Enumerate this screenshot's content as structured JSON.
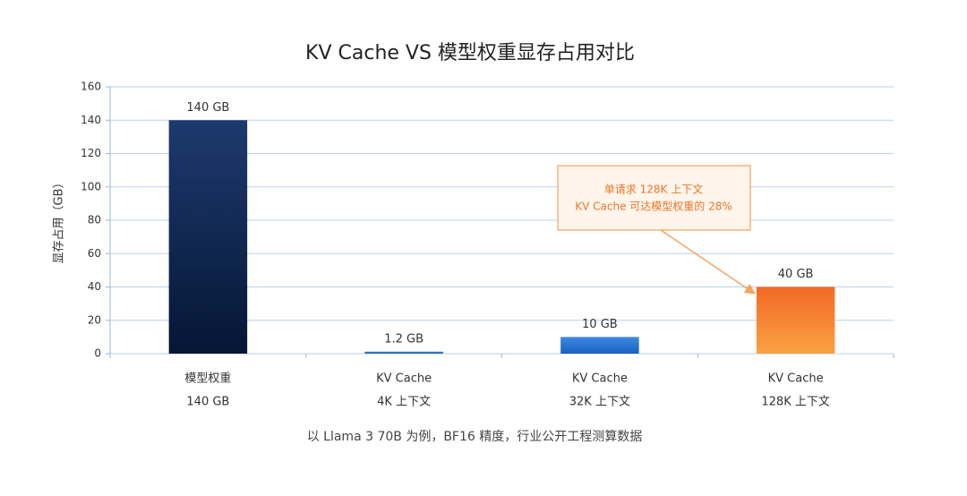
{
  "chart_data": {
    "type": "bar",
    "title": "KV Cache VS 模型权重显存占用对比",
    "y_label": "显存占用（GB）",
    "categories": [
      [
        "模型权重",
        "140 GB"
      ],
      [
        "KV Cache",
        "4K 上下文"
      ],
      [
        "KV Cache",
        "32K 上下文"
      ],
      [
        "KV Cache",
        "128K 上下文"
      ]
    ],
    "values": [
      140,
      1.2,
      10,
      40
    ],
    "value_labels": [
      "140 GB",
      "1.2 GB",
      "10 GB",
      "40 GB"
    ],
    "colors": [
      [
        "#1d3a6e",
        "#051634"
      ],
      [
        "#3d86d6",
        "#1f5fb0"
      ],
      [
        "#3d8ae0",
        "#1a5fc0"
      ],
      [
        "#f26a24",
        "#fba144"
      ]
    ],
    "ylim": [
      0,
      160
    ],
    "yticks": [
      0,
      20,
      40,
      60,
      80,
      100,
      120,
      140,
      160
    ],
    "grid": true,
    "annotation": {
      "lines": [
        "单请求 128K 上下文",
        "KV Cache 可达模型权重的 28%"
      ]
    },
    "footnote": "以 Llama 3 70B 为例，BF16 精度，行业公开工程测算数据"
  }
}
